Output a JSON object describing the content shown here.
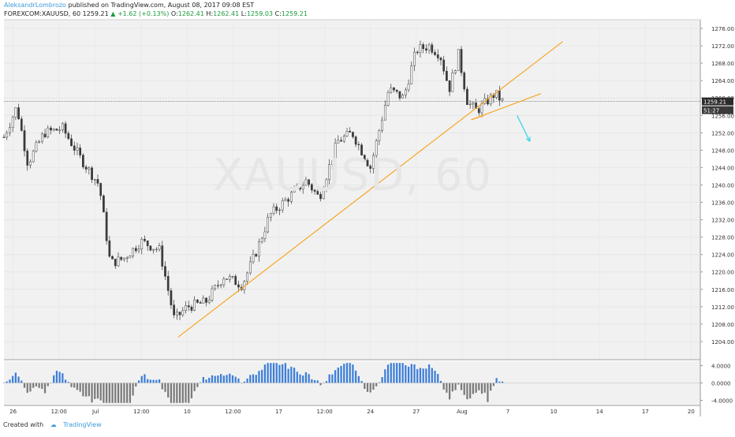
{
  "header": {
    "author": "AleksandrLombrozo",
    "published": "published on TradingView.com, August 08, 2017 09:08 EST",
    "symbol": "FOREXCOM:XAUUSD, 60",
    "last": "1259.21",
    "change": "+1.62 (+0.13%)",
    "open_label": "O:",
    "open": "1262.41",
    "high_label": "H:",
    "high": "1262.41",
    "low_label": "L:",
    "low": "1259.03",
    "close_label": "C:",
    "close": "1259.21"
  },
  "watermark": "XAUUSD, 60",
  "footer": {
    "created_with": "Created with",
    "brand": "TradingView"
  },
  "colors": {
    "background": "#f1f1f1",
    "candle": "#3a3a3a",
    "trendline": "#f5a623",
    "arrow": "#3fd3e8",
    "osc_positive": "#3b7dd8",
    "osc_negative": "#7a7a7a",
    "price_label_bg": "#2b2b2b",
    "up_text": "#1a9b3a"
  },
  "chart_data": {
    "type": "candlestick",
    "timeframe": "60",
    "y_range": [
      1200,
      1278
    ],
    "price_ticks": [
      1276,
      1272,
      1268,
      1264,
      1260,
      1256,
      1252,
      1248,
      1244,
      1240,
      1236,
      1232,
      1228,
      1224,
      1220,
      1216,
      1212,
      1208,
      1204
    ],
    "price_tick_labels": [
      "1276.00",
      "1272.00",
      "1268.00",
      "1264.00",
      "1260.00",
      "1256.00",
      "1252.00",
      "1248.00",
      "1244.00",
      "1240.00",
      "1236.00",
      "1232.00",
      "1228.00",
      "1224.00",
      "1220.00",
      "1216.00",
      "1212.00",
      "1208.00",
      "1204.00"
    ],
    "x_tick_labels": [
      "26",
      "12:00",
      "Jul",
      "12:00",
      "10",
      "12:00",
      "17",
      "12:00",
      "24",
      "27",
      "Aug",
      "7",
      "10",
      "14",
      "17",
      "20"
    ],
    "x_tick_positions": [
      0.5,
      3,
      5,
      7.5,
      10,
      12.5,
      15,
      17.5,
      20,
      22.5,
      25,
      27.5,
      30,
      32.5,
      35,
      37.5
    ],
    "x_range": [
      0,
      38
    ],
    "current_price": 1259.21,
    "current_price_label": "1259.21",
    "countdown_label": "51:27",
    "waypoints": [
      {
        "t": 0,
        "p": 1251
      },
      {
        "t": 0.7,
        "p": 1258
      },
      {
        "t": 1.3,
        "p": 1245
      },
      {
        "t": 2.2,
        "p": 1252
      },
      {
        "t": 3.2,
        "p": 1253
      },
      {
        "t": 4.2,
        "p": 1246
      },
      {
        "t": 5.2,
        "p": 1240
      },
      {
        "t": 5.8,
        "p": 1222
      },
      {
        "t": 6.5,
        "p": 1223
      },
      {
        "t": 7.5,
        "p": 1227
      },
      {
        "t": 8.5,
        "p": 1225
      },
      {
        "t": 9.3,
        "p": 1209
      },
      {
        "t": 10,
        "p": 1212
      },
      {
        "t": 11,
        "p": 1213
      },
      {
        "t": 12,
        "p": 1219
      },
      {
        "t": 13,
        "p": 1217
      },
      {
        "t": 13.8,
        "p": 1225
      },
      {
        "t": 14.5,
        "p": 1233
      },
      {
        "t": 15.5,
        "p": 1237
      },
      {
        "t": 16.5,
        "p": 1241
      },
      {
        "t": 17.2,
        "p": 1237
      },
      {
        "t": 18.2,
        "p": 1250
      },
      {
        "t": 19,
        "p": 1252
      },
      {
        "t": 20,
        "p": 1244
      },
      {
        "t": 21,
        "p": 1262
      },
      {
        "t": 21.8,
        "p": 1260
      },
      {
        "t": 22.5,
        "p": 1271
      },
      {
        "t": 23.2,
        "p": 1272
      },
      {
        "t": 23.8,
        "p": 1270
      },
      {
        "t": 24.3,
        "p": 1262
      },
      {
        "t": 24.8,
        "p": 1270
      },
      {
        "t": 25.3,
        "p": 1259
      },
      {
        "t": 25.8,
        "p": 1257
      },
      {
        "t": 26.3,
        "p": 1259
      },
      {
        "t": 26.8,
        "p": 1261
      },
      {
        "t": 27.2,
        "p": 1259.2
      }
    ],
    "trendlines": [
      {
        "t1": 9.5,
        "p1": 1205,
        "t2": 30.5,
        "p2": 1273
      },
      {
        "t1": 25.5,
        "p1": 1255,
        "t2": 29.3,
        "p2": 1261
      },
      {
        "t1": 25.5,
        "p1": 1255,
        "t2": 26.2,
        "p2": 1256
      }
    ],
    "arrow": {
      "t1": 28,
      "p1": 1256,
      "t2": 28.7,
      "p2": 1250
    },
    "oscillator": {
      "y_ticks": [
        4,
        0,
        -4
      ],
      "y_tick_labels": [
        "4.0000",
        "0.0000",
        "-4.0000"
      ],
      "y_range": [
        -5,
        5
      ]
    }
  }
}
